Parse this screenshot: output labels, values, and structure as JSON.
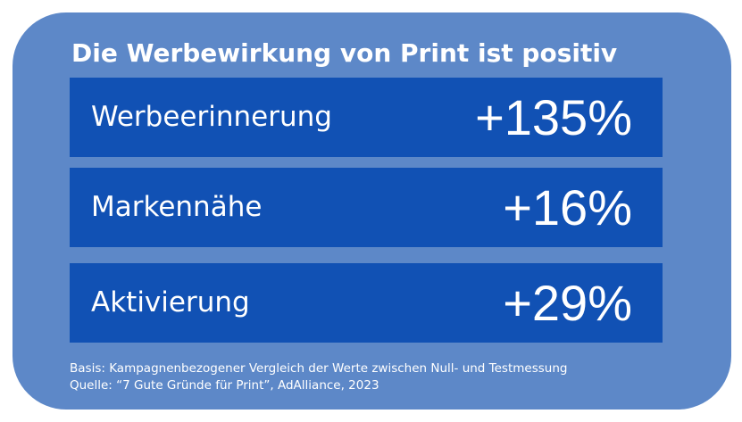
{
  "title": "Die Werbewirkung von Print ist positiv",
  "metrics": [
    {
      "label": "Werbeerinnerung",
      "value": "+135%"
    },
    {
      "label": "Markennähe",
      "value": "+16%"
    },
    {
      "label": "Aktivierung",
      "value": "+29%"
    }
  ],
  "footer": {
    "basis": "Basis: Kampagnenbezogener Vergleich der Werte zwischen Null- und Testmessung",
    "source": "Quelle: “7 Gute Gründe für Print”, AdAlliance, 2023"
  },
  "colors": {
    "card_background": "#5d88c8",
    "row_background": "#1151b4",
    "text": "#ffffff"
  }
}
